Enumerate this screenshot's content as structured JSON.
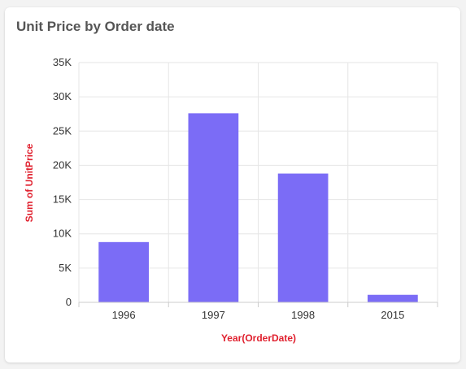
{
  "card": {
    "title": "Unit Price by Order date"
  },
  "chart_data": {
    "type": "bar",
    "categories": [
      "1996",
      "1997",
      "1998",
      "2015"
    ],
    "values": [
      8800,
      27600,
      18800,
      1100
    ],
    "title": "",
    "xlabel": "Year(OrderDate)",
    "ylabel": "Sum of UnitPrice",
    "ylim": [
      0,
      35000
    ],
    "yticks": [
      0,
      5000,
      10000,
      15000,
      20000,
      25000,
      30000,
      35000
    ],
    "ytick_labels": [
      "0",
      "5K",
      "10K",
      "15K",
      "20K",
      "25K",
      "30K",
      "35K"
    ],
    "grid": true,
    "legend": "none",
    "colors": {
      "bar": "#7b6cf6",
      "axis_title": "#e0202e",
      "grid": "#e6e6e6"
    }
  }
}
